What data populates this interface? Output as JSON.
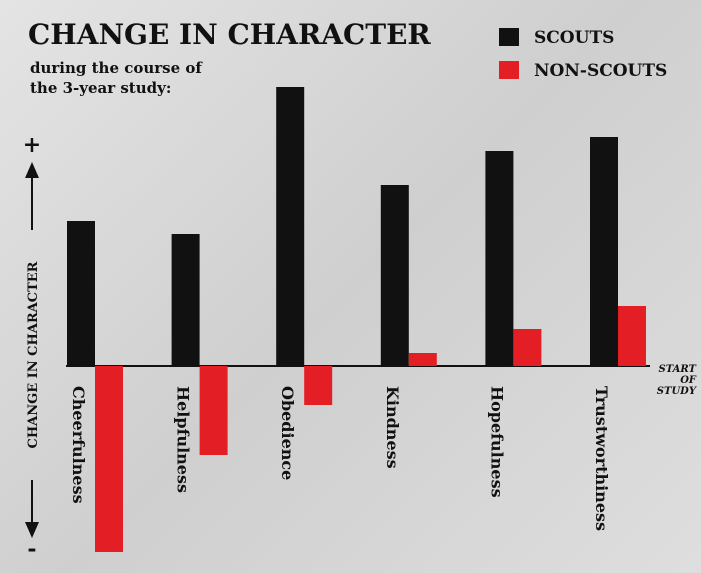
{
  "chart_data": {
    "type": "bar",
    "title": "CHANGE IN CHARACTER",
    "subtitle": "during the course of the 3-year study:",
    "y_label": "CHANGE IN CHARACTER",
    "y_top_label": "+",
    "y_bottom_label": "-",
    "baseline_label": "START OF STUDY",
    "categories": [
      "Cheerfulness",
      "Helpfulness",
      "Obedience",
      "Kindness",
      "Hopefulness",
      "Trustworthiness"
    ],
    "series": [
      {
        "name": "SCOUTS",
        "color": "#111111",
        "values": [
          145,
          132,
          279,
          181,
          215,
          229
        ]
      },
      {
        "name": "NON-SCOUTS",
        "color": "#e31e24",
        "values": [
          -186,
          -89,
          -39,
          13,
          37,
          60
        ]
      }
    ]
  }
}
